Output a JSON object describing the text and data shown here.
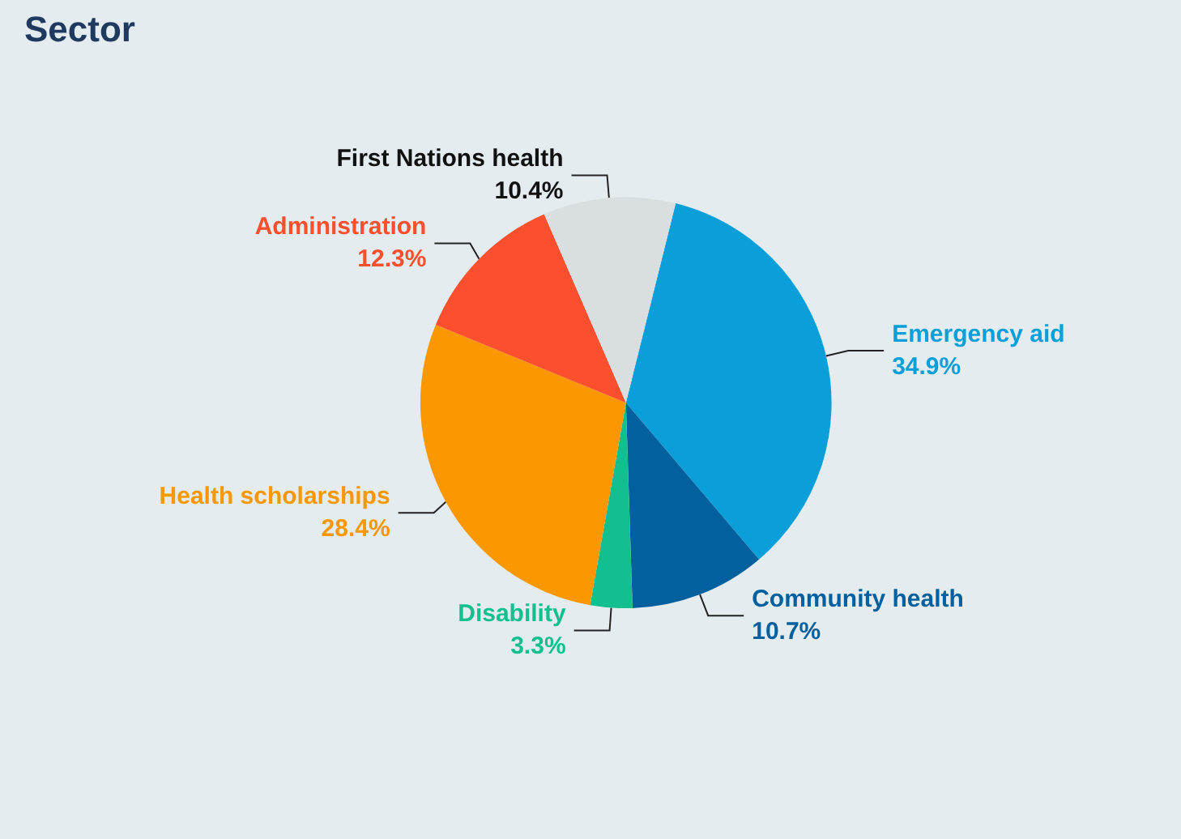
{
  "chart_data": {
    "type": "pie",
    "title": "Sector",
    "categories": [
      "Emergency aid",
      "Community health",
      "Disability",
      "Health scholarships",
      "Administration",
      "First Nations health"
    ],
    "values": [
      34.9,
      10.7,
      3.3,
      28.4,
      12.3,
      10.4
    ],
    "value_labels": [
      "34.9%",
      "10.7%",
      "3.3%",
      "28.4%",
      "12.3%",
      "10.4%"
    ],
    "colors": [
      "#0a9fd8",
      "#01609d",
      "#12c08f",
      "#fb9700",
      "#fb4f2d",
      "#d9dfe1"
    ],
    "legend": false
  }
}
